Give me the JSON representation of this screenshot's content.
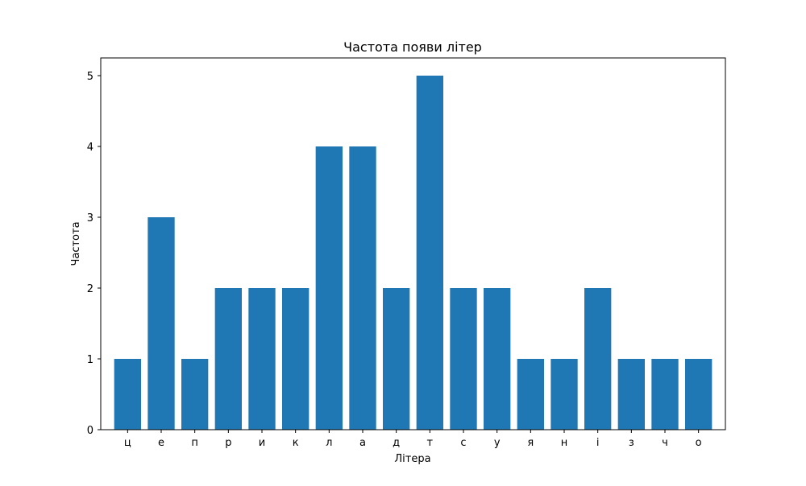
{
  "chart_data": {
    "type": "bar",
    "title": "Частота появи літер",
    "xlabel": "Літера",
    "ylabel": "Частота",
    "categories": [
      "ц",
      "е",
      "п",
      "р",
      "и",
      "к",
      "л",
      "а",
      "д",
      "т",
      "с",
      "у",
      "я",
      "н",
      "і",
      "з",
      "ч",
      "о"
    ],
    "values": [
      1,
      3,
      1,
      2,
      2,
      2,
      4,
      4,
      2,
      5,
      2,
      2,
      1,
      1,
      2,
      1,
      1,
      1
    ],
    "ylim": [
      0,
      5.25
    ],
    "yticks": [
      0,
      1,
      2,
      3,
      4,
      5
    ],
    "grid": false,
    "legend": "none",
    "bar_color": "#1f77b4"
  }
}
